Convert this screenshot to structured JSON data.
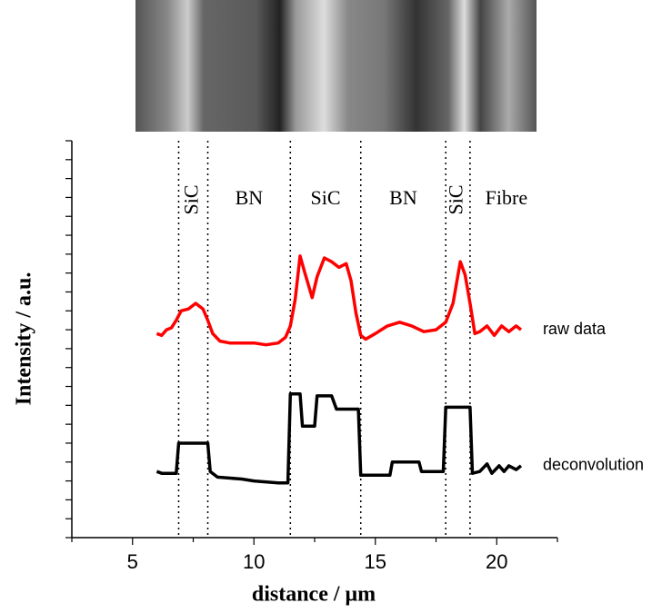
{
  "chart_data": {
    "type": "line",
    "x_label": "distance / μm",
    "y_label": "Intensity / a.u.",
    "xlim": [
      2.5,
      22.5
    ],
    "xticks": [
      5,
      10,
      15,
      20
    ],
    "xminorticks": [
      2.5,
      7.5,
      12.5,
      17.5,
      22.5
    ],
    "ylim": [
      0,
      21
    ],
    "yticks": [
      0,
      1,
      2,
      3,
      4,
      5,
      6,
      7,
      8,
      9,
      10,
      11,
      12,
      13,
      14,
      15,
      16,
      17,
      18,
      19,
      20,
      21
    ],
    "boundaries": [
      6.9,
      8.1,
      11.5,
      14.4,
      17.9,
      18.9
    ],
    "regions": [
      "SiC",
      "BN",
      "SiC",
      "BN",
      "SiC",
      "Fibre"
    ],
    "series": [
      {
        "name": "raw data",
        "color": "#ff0000",
        "x": [
          6.0,
          6.2,
          6.4,
          6.6,
          6.8,
          7.0,
          7.3,
          7.6,
          7.9,
          8.1,
          8.3,
          8.6,
          9.0,
          9.5,
          10.0,
          10.5,
          11.0,
          11.3,
          11.5,
          11.7,
          11.9,
          12.1,
          12.4,
          12.6,
          12.9,
          13.2,
          13.5,
          13.8,
          14.0,
          14.2,
          14.4,
          14.6,
          15.0,
          15.5,
          16.0,
          16.5,
          17.0,
          17.5,
          17.9,
          18.2,
          18.5,
          18.7,
          18.9,
          19.1,
          19.3,
          19.6,
          19.9,
          20.2,
          20.5,
          20.8,
          21.0
        ],
        "values": [
          10.8,
          10.7,
          11.0,
          11.1,
          11.5,
          12.0,
          12.1,
          12.4,
          12.1,
          11.5,
          10.8,
          10.4,
          10.3,
          10.3,
          10.3,
          10.2,
          10.3,
          10.6,
          11.2,
          12.6,
          14.9,
          14.0,
          12.7,
          13.8,
          14.8,
          14.6,
          14.3,
          14.5,
          13.6,
          11.9,
          10.7,
          10.5,
          10.8,
          11.2,
          11.4,
          11.2,
          10.9,
          11.0,
          11.4,
          12.4,
          14.6,
          13.9,
          12.4,
          10.8,
          10.9,
          11.2,
          10.7,
          11.2,
          10.9,
          11.2,
          11.0
        ]
      },
      {
        "name": "deconvolution",
        "color": "#000000",
        "x": [
          6.0,
          6.2,
          6.8,
          6.9,
          8.1,
          8.2,
          8.5,
          9.5,
          10.0,
          11.0,
          11.4,
          11.5,
          11.9,
          12.0,
          12.5,
          12.6,
          13.2,
          13.4,
          14.3,
          14.4,
          15.6,
          15.7,
          16.8,
          16.9,
          17.8,
          17.9,
          18.9,
          19.0,
          19.3,
          19.6,
          19.8,
          20.1,
          20.3,
          20.5,
          20.8,
          21.0
        ],
        "values": [
          3.5,
          3.4,
          3.4,
          5.0,
          5.0,
          3.5,
          3.2,
          3.1,
          3.0,
          2.9,
          2.9,
          7.6,
          7.6,
          5.9,
          5.9,
          7.5,
          7.5,
          6.8,
          6.8,
          3.3,
          3.3,
          4.0,
          4.0,
          3.5,
          3.5,
          6.9,
          6.9,
          3.4,
          3.5,
          3.9,
          3.4,
          3.8,
          3.5,
          3.8,
          3.6,
          3.8
        ]
      }
    ]
  }
}
